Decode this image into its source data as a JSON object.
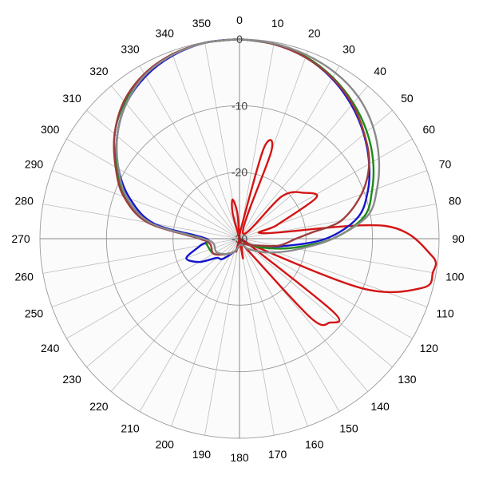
{
  "chart_data": {
    "type": "polar-line",
    "r_range": [
      -30,
      0
    ],
    "r_ticks": [
      {
        "value": 0,
        "label": "0"
      },
      {
        "value": -10,
        "label": "-10"
      },
      {
        "value": -20,
        "label": "-20"
      },
      {
        "value": -30,
        "label": "-30"
      }
    ],
    "angle_labels": [
      "0",
      "10",
      "20",
      "30",
      "40",
      "50",
      "60",
      "70",
      "80",
      "90",
      "100",
      "110",
      "120",
      "130",
      "140",
      "150",
      "160",
      "170",
      "180",
      "190",
      "200",
      "210",
      "220",
      "230",
      "240",
      "250",
      "260",
      "270",
      "280",
      "290",
      "300",
      "310",
      "320",
      "330",
      "340",
      "350"
    ],
    "direction": "clockwise",
    "zero_at": "top",
    "grid": true,
    "series": [
      {
        "color": "#d41414",
        "points": [
          [
            0,
            -30
          ],
          [
            10,
            -28
          ],
          [
            15,
            -16
          ],
          [
            20,
            -16
          ],
          [
            30,
            -29
          ],
          [
            45,
            -21
          ],
          [
            55,
            -18
          ],
          [
            62,
            -17
          ],
          [
            70,
            -24
          ],
          [
            78,
            -26
          ],
          [
            85,
            -8
          ],
          [
            95,
            -1
          ],
          [
            100,
            -0.5
          ],
          [
            105,
            -1.5
          ],
          [
            112,
            -10
          ],
          [
            118,
            -28
          ],
          [
            122,
            -28
          ],
          [
            128,
            -12
          ],
          [
            133,
            -11.5
          ],
          [
            138,
            -14
          ],
          [
            145,
            -28
          ],
          [
            160,
            -29
          ],
          [
            170,
            -27
          ],
          [
            175,
            -30
          ],
          [
            180,
            -30
          ],
          [
            190,
            -29
          ],
          [
            195,
            -28
          ],
          [
            200,
            -30
          ],
          [
            270,
            -30
          ],
          [
            335,
            -30
          ],
          [
            345,
            -26
          ],
          [
            350,
            -24
          ],
          [
            355,
            -26
          ],
          [
            360,
            -30
          ]
        ]
      },
      {
        "color": "#1414cc",
        "points": [
          [
            0,
            0
          ],
          [
            10,
            -0.3
          ],
          [
            20,
            -1
          ],
          [
            30,
            -2.2
          ],
          [
            40,
            -3.8
          ],
          [
            50,
            -5.6
          ],
          [
            60,
            -7.5
          ],
          [
            70,
            -9.5
          ],
          [
            80,
            -12
          ],
          [
            90,
            -17
          ],
          [
            100,
            -23.5
          ],
          [
            110,
            -27
          ],
          [
            120,
            -28
          ],
          [
            140,
            -29
          ],
          [
            160,
            -29
          ],
          [
            180,
            -29
          ],
          [
            200,
            -28
          ],
          [
            220,
            -26
          ],
          [
            230,
            -25.5
          ],
          [
            240,
            -23
          ],
          [
            250,
            -21.5
          ],
          [
            260,
            -24
          ],
          [
            270,
            -25
          ],
          [
            280,
            -17
          ],
          [
            290,
            -12.5
          ],
          [
            300,
            -9
          ],
          [
            310,
            -6
          ],
          [
            320,
            -3.5
          ],
          [
            330,
            -1.8
          ],
          [
            340,
            -0.7
          ],
          [
            350,
            -0.1
          ],
          [
            360,
            0
          ]
        ]
      },
      {
        "color": "#1a8a1a",
        "points": [
          [
            0,
            0
          ],
          [
            10,
            -0.3
          ],
          [
            20,
            -0.9
          ],
          [
            30,
            -2
          ],
          [
            40,
            -3.4
          ],
          [
            50,
            -5
          ],
          [
            60,
            -6.8
          ],
          [
            70,
            -8.8
          ],
          [
            80,
            -11
          ],
          [
            90,
            -16
          ],
          [
            100,
            -22
          ],
          [
            110,
            -26
          ],
          [
            120,
            -28
          ],
          [
            140,
            -29
          ],
          [
            160,
            -29
          ],
          [
            180,
            -29
          ],
          [
            200,
            -28
          ],
          [
            220,
            -27
          ],
          [
            240,
            -25.5
          ],
          [
            260,
            -25
          ],
          [
            270,
            -24.5
          ],
          [
            280,
            -16
          ],
          [
            290,
            -11.8
          ],
          [
            300,
            -8.7
          ],
          [
            310,
            -5.5
          ],
          [
            320,
            -3.2
          ],
          [
            330,
            -1.5
          ],
          [
            340,
            -0.5
          ],
          [
            350,
            -0.1
          ],
          [
            360,
            0
          ]
        ]
      },
      {
        "color": "#9e3b3b",
        "points": [
          [
            0,
            0
          ],
          [
            10,
            -0.3
          ],
          [
            20,
            -1
          ],
          [
            30,
            -2.1
          ],
          [
            40,
            -3.6
          ],
          [
            50,
            -5.5
          ],
          [
            60,
            -7.5
          ],
          [
            70,
            -10.5
          ],
          [
            80,
            -14.5
          ],
          [
            85,
            -19
          ],
          [
            90,
            -21.5
          ],
          [
            100,
            -24
          ],
          [
            110,
            -27
          ],
          [
            120,
            -28
          ],
          [
            140,
            -29
          ],
          [
            160,
            -29
          ],
          [
            180,
            -29
          ],
          [
            200,
            -28
          ],
          [
            220,
            -27
          ],
          [
            240,
            -25.5
          ],
          [
            260,
            -25.5
          ],
          [
            270,
            -24
          ],
          [
            280,
            -16
          ],
          [
            290,
            -11.5
          ],
          [
            300,
            -8.5
          ],
          [
            310,
            -5.5
          ],
          [
            320,
            -3
          ],
          [
            330,
            -1.4
          ],
          [
            340,
            -0.5
          ],
          [
            350,
            -0.1
          ],
          [
            360,
            0
          ]
        ]
      },
      {
        "color": "#8a8a8a",
        "points": [
          [
            0,
            0
          ],
          [
            10,
            -0.2
          ],
          [
            20,
            -0.6
          ],
          [
            30,
            -1.2
          ],
          [
            40,
            -2.2
          ],
          [
            50,
            -3.8
          ],
          [
            60,
            -5.8
          ],
          [
            70,
            -8
          ],
          [
            80,
            -10.5
          ],
          [
            90,
            -16
          ],
          [
            100,
            -21
          ],
          [
            110,
            -24
          ],
          [
            120,
            -26
          ],
          [
            140,
            -28
          ],
          [
            160,
            -29
          ],
          [
            180,
            -29
          ],
          [
            200,
            -28
          ],
          [
            220,
            -27
          ],
          [
            240,
            -26
          ],
          [
            260,
            -26
          ],
          [
            270,
            -24.5
          ],
          [
            280,
            -16.5
          ],
          [
            290,
            -12
          ],
          [
            300,
            -9
          ],
          [
            310,
            -6
          ],
          [
            320,
            -3.5
          ],
          [
            330,
            -1.6
          ],
          [
            340,
            -0.6
          ],
          [
            350,
            -0.1
          ],
          [
            360,
            0
          ]
        ]
      }
    ]
  }
}
